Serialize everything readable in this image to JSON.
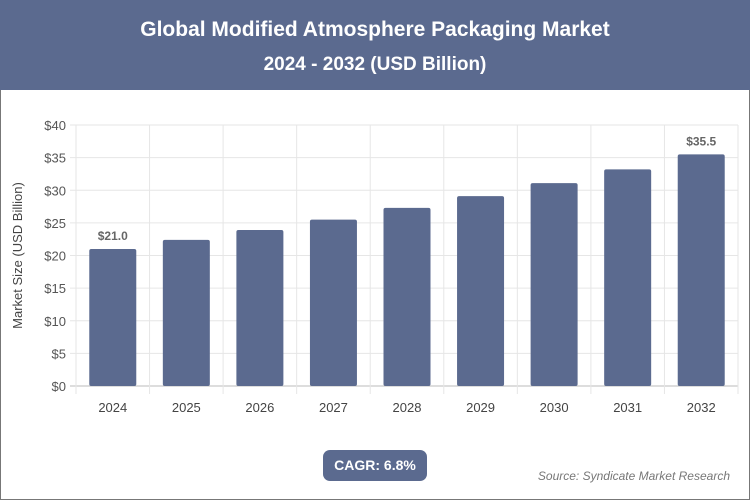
{
  "header": {
    "title": "Global Modified Atmosphere Packaging Market",
    "subtitle": "2024 - 2032 (USD Billion)"
  },
  "chart_data": {
    "type": "bar",
    "title": "Global Modified Atmosphere Packaging Market",
    "subtitle": "2024 - 2032 (USD Billion)",
    "xlabel": "",
    "ylabel": "Market Size (USD Billion)",
    "categories": [
      "2024",
      "2025",
      "2026",
      "2027",
      "2028",
      "2029",
      "2030",
      "2031",
      "2032"
    ],
    "values": [
      21.0,
      22.4,
      23.9,
      25.5,
      27.3,
      29.1,
      31.1,
      33.2,
      35.5
    ],
    "data_labels": {
      "0": "$21.0",
      "8": "$35.5"
    },
    "ylim": [
      0,
      40
    ],
    "yticks": [
      "$0",
      "$5",
      "$10",
      "$15",
      "$20",
      "$25",
      "$30",
      "$35",
      "$40"
    ],
    "grid": true,
    "bar_color": "#5b6a8f"
  },
  "footer": {
    "cagr": "CAGR: 6.8%",
    "source": "Source: Syndicate Market Research"
  }
}
